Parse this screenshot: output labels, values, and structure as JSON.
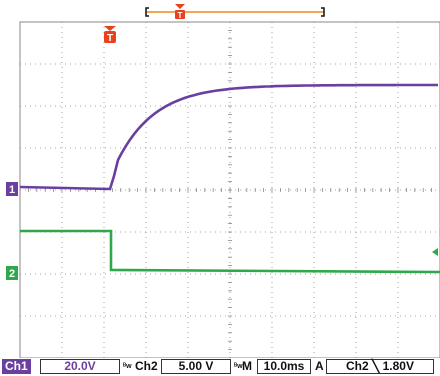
{
  "colors": {
    "ch1": "#6b3fa0",
    "ch2": "#2ea84a",
    "trigger": "#e8411f",
    "position_bar": "#ee8a1c",
    "grid": "#8a8a8a"
  },
  "icons": {
    "trigger_position": "trigger-T-marker",
    "ch1_ground": "ch1-ground-marker",
    "ch2_ground": "ch2-ground-marker"
  },
  "markers": {
    "trigger_letter": "T",
    "ch1_label": "1",
    "ch2_label": "2"
  },
  "status": {
    "ch1_label": "Ch1",
    "ch1_volts": "20.0V",
    "bw1": "ᴮw",
    "ch2_label": "Ch2",
    "ch2_volts": "5.00 V",
    "bw2": "ᴮw",
    "m_label": "M",
    "timebase": "10.0ms",
    "trigger_mode": "A",
    "trigger_source": "Ch2",
    "trigger_slope": "⌐",
    "trigger_level": "1.80V"
  }
}
